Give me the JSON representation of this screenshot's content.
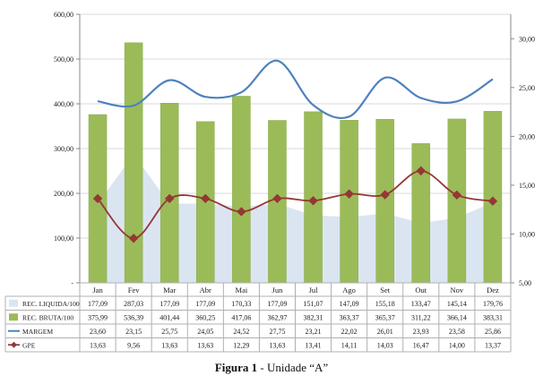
{
  "caption": {
    "label": "Figura 1",
    "text": " - Unidade “A”"
  },
  "colors": {
    "rec_liquida": "#dbe5f1",
    "rec_bruta": "#9bbb59",
    "rec_bruta_edge": "#8aab48",
    "margem": "#4f81bd",
    "gpe": "#953735",
    "grid": "#d9d9d9",
    "axis": "#888888"
  },
  "chart_data": {
    "type": "bar",
    "categories": [
      "Jan",
      "Fev",
      "Mar",
      "Abr",
      "Mai",
      "Jun",
      "Jul",
      "Ago",
      "Set",
      "Out",
      "Nov",
      "Dez"
    ],
    "ylim": [
      0,
      600
    ],
    "y_ticks": [
      "-",
      "100,00",
      "200,00",
      "300,00",
      "400,00",
      "500,00",
      "600,00"
    ],
    "y2lim": [
      5,
      32.5
    ],
    "y2_ticks": [
      "5,00",
      "10,00",
      "15,00",
      "20,00",
      "25,00",
      "30,00"
    ],
    "grid": true,
    "legend": "table-below",
    "series": [
      {
        "name": "REC. LIQUIDA/100",
        "type": "area",
        "axis": "left",
        "values": [
          177.09,
          287.03,
          177.09,
          177.09,
          170.33,
          177.09,
          151.07,
          147.09,
          155.18,
          133.47,
          145.14,
          179.76
        ],
        "labels": [
          "177,09",
          "287,03",
          "177,09",
          "177,09",
          "170,33",
          "177,09",
          "151,07",
          "147,09",
          "155,18",
          "133,47",
          "145,14",
          "179,76"
        ]
      },
      {
        "name": "REC. BRUTA/100",
        "type": "bar",
        "axis": "left",
        "values": [
          375.99,
          536.39,
          401.44,
          360.25,
          417.06,
          362.97,
          382.31,
          363.37,
          365.37,
          311.22,
          366.14,
          383.31
        ],
        "labels": [
          "375,99",
          "536,39",
          "401,44",
          "360,25",
          "417,06",
          "362,97",
          "382,31",
          "363,37",
          "365,37",
          "311,22",
          "366,14",
          "383,31"
        ]
      },
      {
        "name": "MARGEM",
        "type": "line",
        "axis": "right",
        "values": [
          23.6,
          23.15,
          25.75,
          24.05,
          24.52,
          27.75,
          23.21,
          22.02,
          26.01,
          23.93,
          23.58,
          25.86
        ],
        "labels": [
          "23,60",
          "23,15",
          "25,75",
          "24,05",
          "24,52",
          "27,75",
          "23,21",
          "22,02",
          "26,01",
          "23,93",
          "23,58",
          "25,86"
        ]
      },
      {
        "name": "GPE",
        "type": "line",
        "axis": "right",
        "values": [
          13.63,
          9.56,
          13.63,
          13.63,
          12.29,
          13.63,
          13.41,
          14.11,
          14.03,
          16.47,
          14.0,
          13.37
        ],
        "labels": [
          "13,63",
          "9,56",
          "13,63",
          "13,63",
          "12,29",
          "13,63",
          "13,41",
          "14,11",
          "14,03",
          "16,47",
          "14,00",
          "13,37"
        ]
      }
    ]
  }
}
